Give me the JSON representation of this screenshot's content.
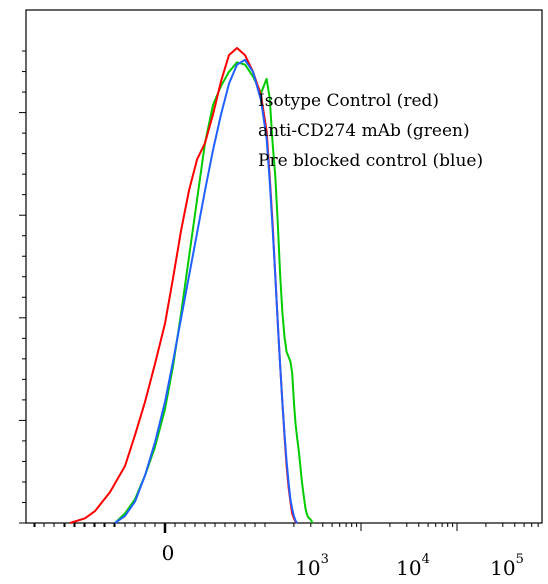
{
  "chart_data": {
    "type": "line",
    "x_scale": "biexponential",
    "xlim": [
      -300,
      100000
    ],
    "ylim": [
      0,
      100
    ],
    "grid": false,
    "title": "",
    "xlabel": "",
    "ylabel": "",
    "x_tick_labels": [
      {
        "base": "0",
        "exp": ""
      },
      {
        "base": "10",
        "exp": "3"
      },
      {
        "base": "10",
        "exp": "4"
      },
      {
        "base": "10",
        "exp": "5"
      }
    ],
    "legend": {
      "placement": "top-right",
      "entries": [
        "Isotype Control (red)",
        "anti-CD274 mAb (green)",
        "Pre blocked control (blue)"
      ]
    },
    "series": [
      {
        "name": "Isotype Control (red)",
        "color": "#ff0000",
        "x": [
          -95,
          -80,
          -70,
          -55,
          -40,
          -30,
          -20,
          -10,
          0,
          8,
          16,
          24,
          32,
          40,
          48,
          56,
          64,
          72,
          80,
          88,
          96,
          104,
          112,
          120,
          128,
          136,
          144,
          152,
          160,
          168,
          176,
          184,
          192,
          200,
          208,
          214
        ],
        "y": [
          0.0,
          1.0,
          2.5,
          6.5,
          12.0,
          18.5,
          25.5,
          33.5,
          42.0,
          51.5,
          61.5,
          70.0,
          76.5,
          80.0,
          86.0,
          93.0,
          98.5,
          100.0,
          98.5,
          95.0,
          90.0,
          82.5,
          73.0,
          63.0,
          52.0,
          42.0,
          33.0,
          25.0,
          18.0,
          12.0,
          7.5,
          4.5,
          2.0,
          1.0,
          0.3,
          0.0
        ]
      },
      {
        "name": "anti-CD274 mAb (green)",
        "color": "#00cc00",
        "x": [
          -50,
          -40,
          -30,
          -20,
          -10,
          0,
          8,
          16,
          24,
          32,
          40,
          48,
          56,
          64,
          72,
          80,
          88,
          96,
          104,
          112,
          120,
          128,
          136,
          144,
          152,
          160,
          168,
          176,
          184,
          192,
          200,
          208,
          216,
          224,
          232,
          240,
          248,
          256,
          264,
          272,
          280,
          288,
          296,
          304,
          312
        ],
        "y": [
          0.0,
          2.0,
          5.0,
          10.0,
          16.0,
          24.0,
          33.0,
          44.0,
          56.0,
          68.0,
          80.0,
          88.0,
          92.0,
          95.0,
          97.0,
          96.5,
          94.0,
          90.5,
          93.5,
          89.5,
          80.0,
          73.0,
          63.0,
          52.0,
          44.0,
          39.0,
          36.0,
          35.0,
          34.0,
          31.5,
          25.5,
          21.0,
          18.0,
          15.5,
          12.5,
          9.5,
          7.0,
          5.0,
          3.0,
          2.0,
          1.3,
          1.0,
          0.8,
          0.5,
          0.0
        ]
      },
      {
        "name": "Pre blocked control (blue)",
        "color": "#2060ff",
        "x": [
          -50,
          -40,
          -30,
          -20,
          -10,
          0,
          8,
          16,
          24,
          32,
          40,
          48,
          56,
          64,
          72,
          80,
          88,
          96,
          104,
          112,
          120,
          128,
          136,
          144,
          152,
          160,
          168,
          176,
          184,
          192,
          200,
          208,
          216
        ],
        "y": [
          0.0,
          1.5,
          4.5,
          10.0,
          17.0,
          25.5,
          34.0,
          43.0,
          52.0,
          61.0,
          70.0,
          78.5,
          86.0,
          92.5,
          96.5,
          97.5,
          95.0,
          89.0,
          81.0,
          72.0,
          62.0,
          52.0,
          42.0,
          33.0,
          25.0,
          18.5,
          13.0,
          8.5,
          5.0,
          3.0,
          1.5,
          0.5,
          0.0
        ]
      }
    ]
  }
}
